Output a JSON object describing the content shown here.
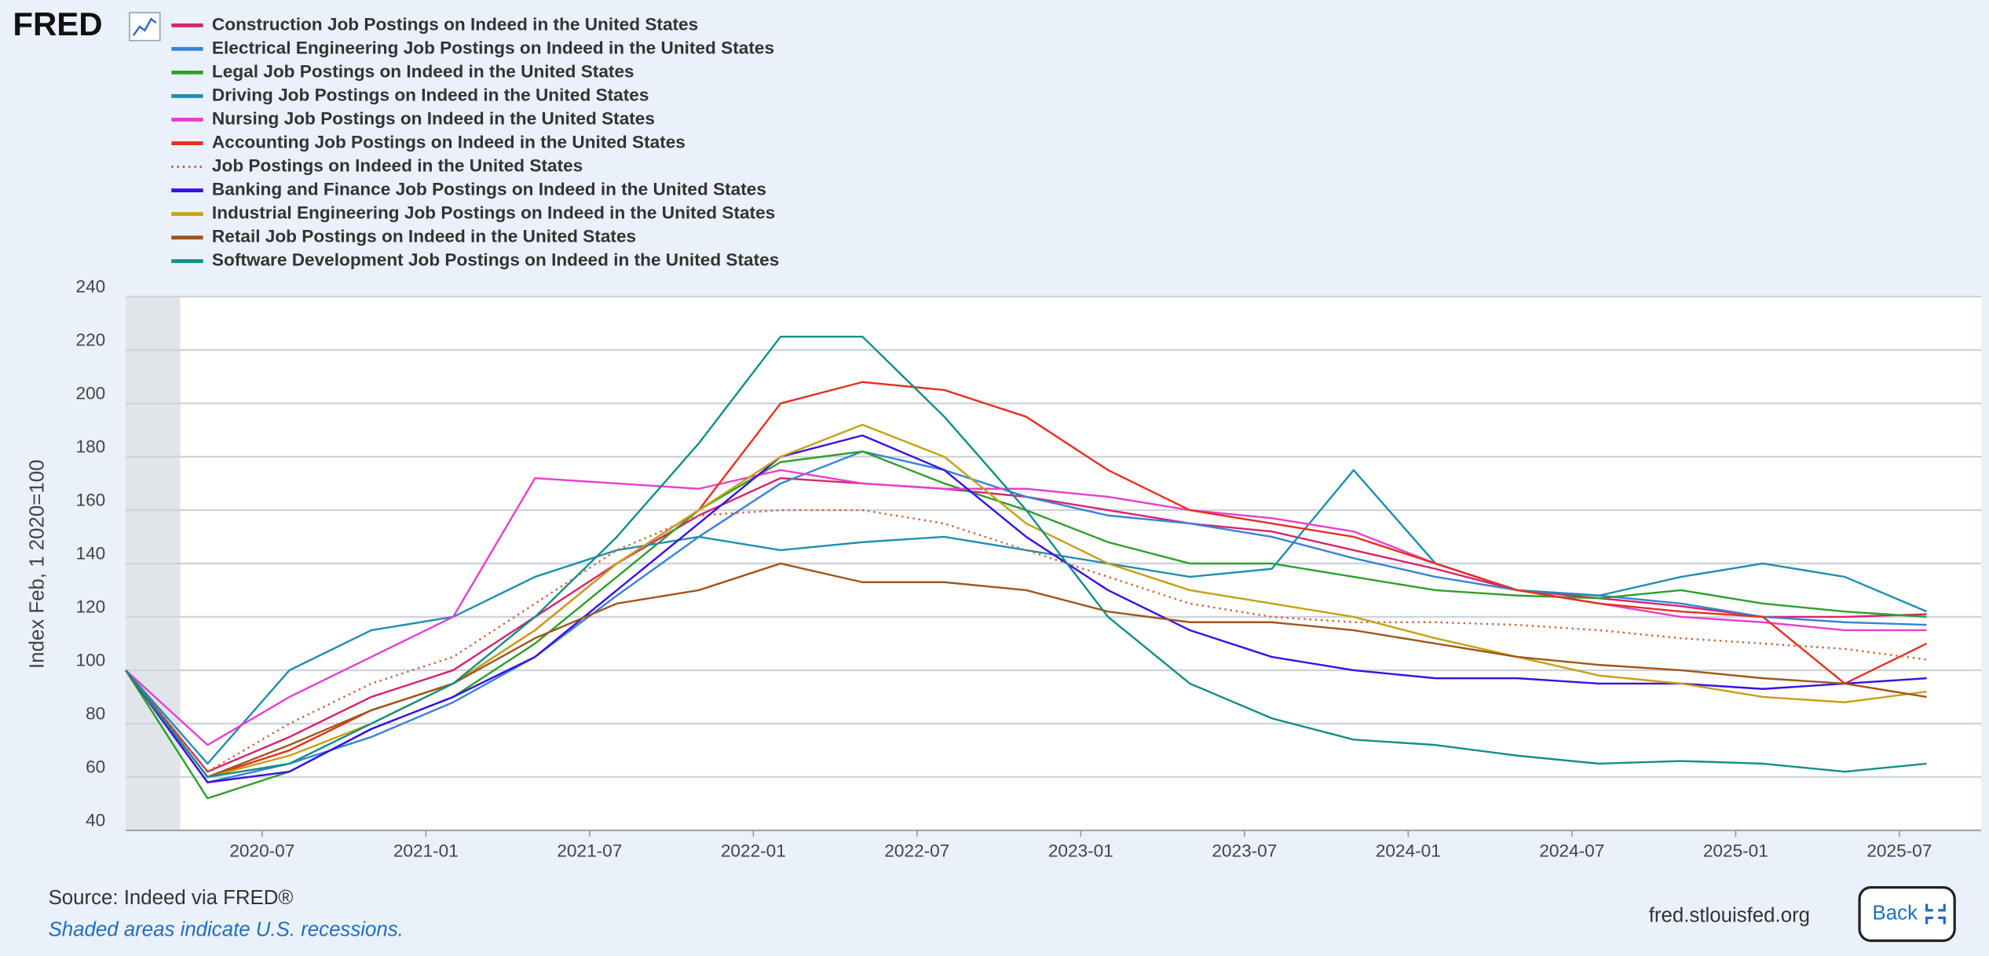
{
  "header": {
    "logo": "FRED"
  },
  "chart_data": {
    "type": "line",
    "y_label": "Index Feb, 1 2020=100",
    "x": [
      "2020-02",
      "2020-05",
      "2020-08",
      "2020-11",
      "2021-02",
      "2021-05",
      "2021-08",
      "2021-11",
      "2022-02",
      "2022-05",
      "2022-08",
      "2022-11",
      "2023-02",
      "2023-05",
      "2023-08",
      "2023-11",
      "2024-02",
      "2024-05",
      "2024-08",
      "2024-11",
      "2025-02",
      "2025-05",
      "2025-08"
    ],
    "xlim": [
      "2020-02",
      "2025-10"
    ],
    "xticks": [
      "2020-07",
      "2021-01",
      "2021-07",
      "2022-01",
      "2022-07",
      "2023-01",
      "2023-07",
      "2024-01",
      "2024-07",
      "2025-01",
      "2025-07"
    ],
    "ylim": [
      40,
      240
    ],
    "yticks": [
      40,
      60,
      80,
      100,
      120,
      140,
      160,
      180,
      200,
      220,
      240
    ],
    "grid": true,
    "recessions": [
      {
        "start": "2020-02",
        "end": "2020-04"
      }
    ],
    "series": [
      {
        "name": "Construction Job Postings on Indeed in the United States",
        "color": "#d6246e",
        "values": [
          100,
          62,
          75,
          90,
          100,
          120,
          140,
          158,
          172,
          170,
          168,
          165,
          160,
          155,
          152,
          145,
          138,
          130,
          127,
          124,
          120,
          120,
          121
        ]
      },
      {
        "name": "Electrical Engineering Job Postings on Indeed in the United States",
        "color": "#3b82d6",
        "values": [
          100,
          58,
          65,
          75,
          88,
          105,
          128,
          150,
          170,
          182,
          175,
          165,
          158,
          155,
          150,
          142,
          135,
          130,
          128,
          125,
          120,
          118,
          117
        ]
      },
      {
        "name": "Legal Job Postings on Indeed in the United States",
        "color": "#2ca02c",
        "values": [
          100,
          52,
          62,
          78,
          90,
          110,
          135,
          160,
          178,
          182,
          170,
          160,
          148,
          140,
          140,
          135,
          130,
          128,
          127,
          130,
          125,
          122,
          120
        ]
      },
      {
        "name": "Driving Job Postings on Indeed in the United States",
        "color": "#1f8fb0",
        "values": [
          100,
          65,
          100,
          115,
          120,
          135,
          145,
          150,
          145,
          148,
          150,
          145,
          140,
          135,
          138,
          175,
          140,
          130,
          128,
          135,
          140,
          135,
          122
        ]
      },
      {
        "name": "Nursing Job Postings on Indeed in the United States",
        "color": "#e83fd1",
        "values": [
          100,
          72,
          90,
          105,
          120,
          172,
          170,
          168,
          175,
          170,
          168,
          168,
          165,
          160,
          157,
          152,
          140,
          130,
          125,
          120,
          118,
          115,
          115
        ]
      },
      {
        "name": "Accounting Job Postings on Indeed in the United States",
        "color": "#e6301f",
        "values": [
          100,
          60,
          70,
          85,
          95,
          115,
          140,
          160,
          200,
          208,
          205,
          195,
          175,
          160,
          155,
          150,
          140,
          130,
          125,
          122,
          120,
          95,
          110
        ]
      },
      {
        "name": "Job Postings on Indeed in the United States",
        "color": "#c8643a",
        "dash": "dotted",
        "values": [
          100,
          62,
          80,
          95,
          105,
          125,
          145,
          158,
          160,
          160,
          155,
          145,
          135,
          125,
          120,
          118,
          118,
          117,
          115,
          112,
          110,
          108,
          104
        ]
      },
      {
        "name": "Banking and Finance Job Postings on Indeed in the United States",
        "color": "#3a10e5",
        "values": [
          100,
          58,
          62,
          78,
          90,
          105,
          130,
          155,
          180,
          188,
          175,
          150,
          130,
          115,
          105,
          100,
          97,
          97,
          95,
          95,
          93,
          95,
          97
        ]
      },
      {
        "name": "Industrial Engineering Job Postings on Indeed in the United States",
        "color": "#c8a014",
        "values": [
          100,
          60,
          68,
          80,
          95,
          115,
          140,
          160,
          180,
          192,
          180,
          155,
          140,
          130,
          125,
          120,
          112,
          105,
          98,
          95,
          90,
          88,
          92
        ]
      },
      {
        "name": "Retail Job Postings on Indeed in the United States",
        "color": "#a0561a",
        "values": [
          100,
          60,
          72,
          85,
          95,
          112,
          125,
          130,
          140,
          133,
          133,
          130,
          122,
          118,
          118,
          115,
          110,
          105,
          102,
          100,
          97,
          95,
          90
        ]
      },
      {
        "name": "Software Development Job Postings on Indeed in the United States",
        "color": "#138f86",
        "values": [
          100,
          60,
          65,
          80,
          95,
          120,
          150,
          185,
          225,
          225,
          195,
          160,
          120,
          95,
          82,
          74,
          72,
          68,
          65,
          66,
          65,
          62,
          65
        ]
      }
    ]
  },
  "footer": {
    "source": "Source: Indeed via FRED®",
    "note": "Shaded areas indicate U.S. recessions.",
    "site": "fred.stlouisfed.org",
    "back": "Back"
  }
}
